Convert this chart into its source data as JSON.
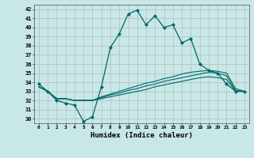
{
  "xlabel": "Humidex (Indice chaleur)",
  "background_color": "#c8e8e8",
  "grid_color": "#b0b0b0",
  "line_color": "#006666",
  "xlim": [
    -0.5,
    23.5
  ],
  "ylim": [
    29.5,
    42.5
  ],
  "xticks": [
    0,
    1,
    2,
    3,
    4,
    5,
    6,
    7,
    8,
    9,
    10,
    11,
    12,
    13,
    14,
    15,
    16,
    17,
    18,
    19,
    20,
    21,
    22,
    23
  ],
  "yticks": [
    30,
    31,
    32,
    33,
    34,
    35,
    36,
    37,
    38,
    39,
    40,
    41,
    42
  ],
  "series_main": [
    33.8,
    33.0,
    32.0,
    31.7,
    31.5,
    29.7,
    30.2,
    33.5,
    37.8,
    39.3,
    41.5,
    41.9,
    40.3,
    41.3,
    40.0,
    40.3,
    38.3,
    38.8,
    36.0,
    35.3,
    35.0,
    33.8,
    33.0,
    33.0
  ],
  "series_lower1": [
    33.5,
    33.0,
    32.2,
    32.2,
    32.0,
    32.0,
    32.0,
    32.2,
    32.4,
    32.6,
    32.8,
    33.0,
    33.2,
    33.5,
    33.7,
    33.9,
    34.1,
    34.3,
    34.5,
    34.6,
    34.5,
    34.3,
    33.0,
    33.0
  ],
  "series_lower2": [
    33.5,
    33.0,
    32.2,
    32.2,
    32.0,
    32.0,
    32.0,
    32.4,
    32.7,
    33.0,
    33.3,
    33.6,
    33.9,
    34.1,
    34.4,
    34.6,
    34.9,
    35.1,
    35.2,
    35.3,
    35.2,
    35.0,
    33.3,
    33.0
  ],
  "series_lower3": [
    33.5,
    33.0,
    32.2,
    32.2,
    32.0,
    32.0,
    32.0,
    32.3,
    32.6,
    32.8,
    33.1,
    33.3,
    33.6,
    33.8,
    34.1,
    34.3,
    34.5,
    34.7,
    34.9,
    35.1,
    35.0,
    34.7,
    33.1,
    33.0
  ]
}
